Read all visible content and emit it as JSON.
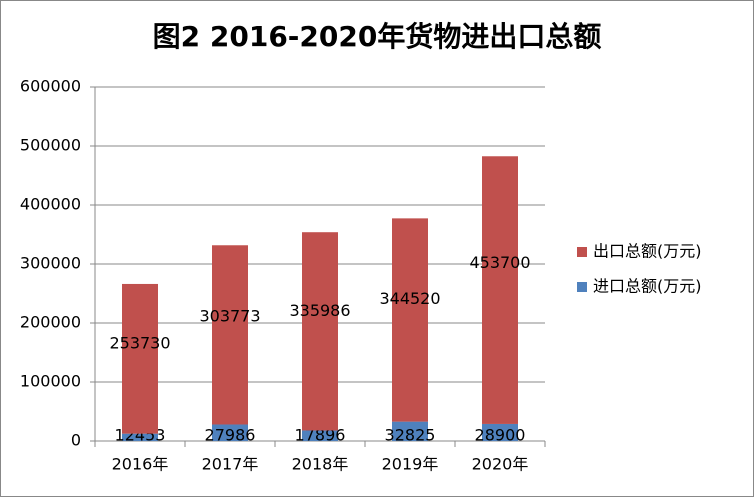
{
  "chart_data": {
    "type": "stacked-bar",
    "title": "图2  2016-2020年货物进出口总额",
    "categories": [
      "2016年",
      "2017年",
      "2018年",
      "2019年",
      "2020年"
    ],
    "series": [
      {
        "name": "出口总额(万元)",
        "color": "#c0504d",
        "values": [
          253730,
          303773,
          335986,
          344520,
          453700
        ]
      },
      {
        "name": "进口总额(万元)",
        "color": "#4f81bd",
        "values": [
          12453,
          27986,
          17896,
          32825,
          28900
        ]
      }
    ],
    "ylim": [
      0,
      600000
    ],
    "yticks": [
      0,
      100000,
      200000,
      300000,
      400000,
      500000,
      600000
    ],
    "grid": true,
    "legend": "right"
  }
}
